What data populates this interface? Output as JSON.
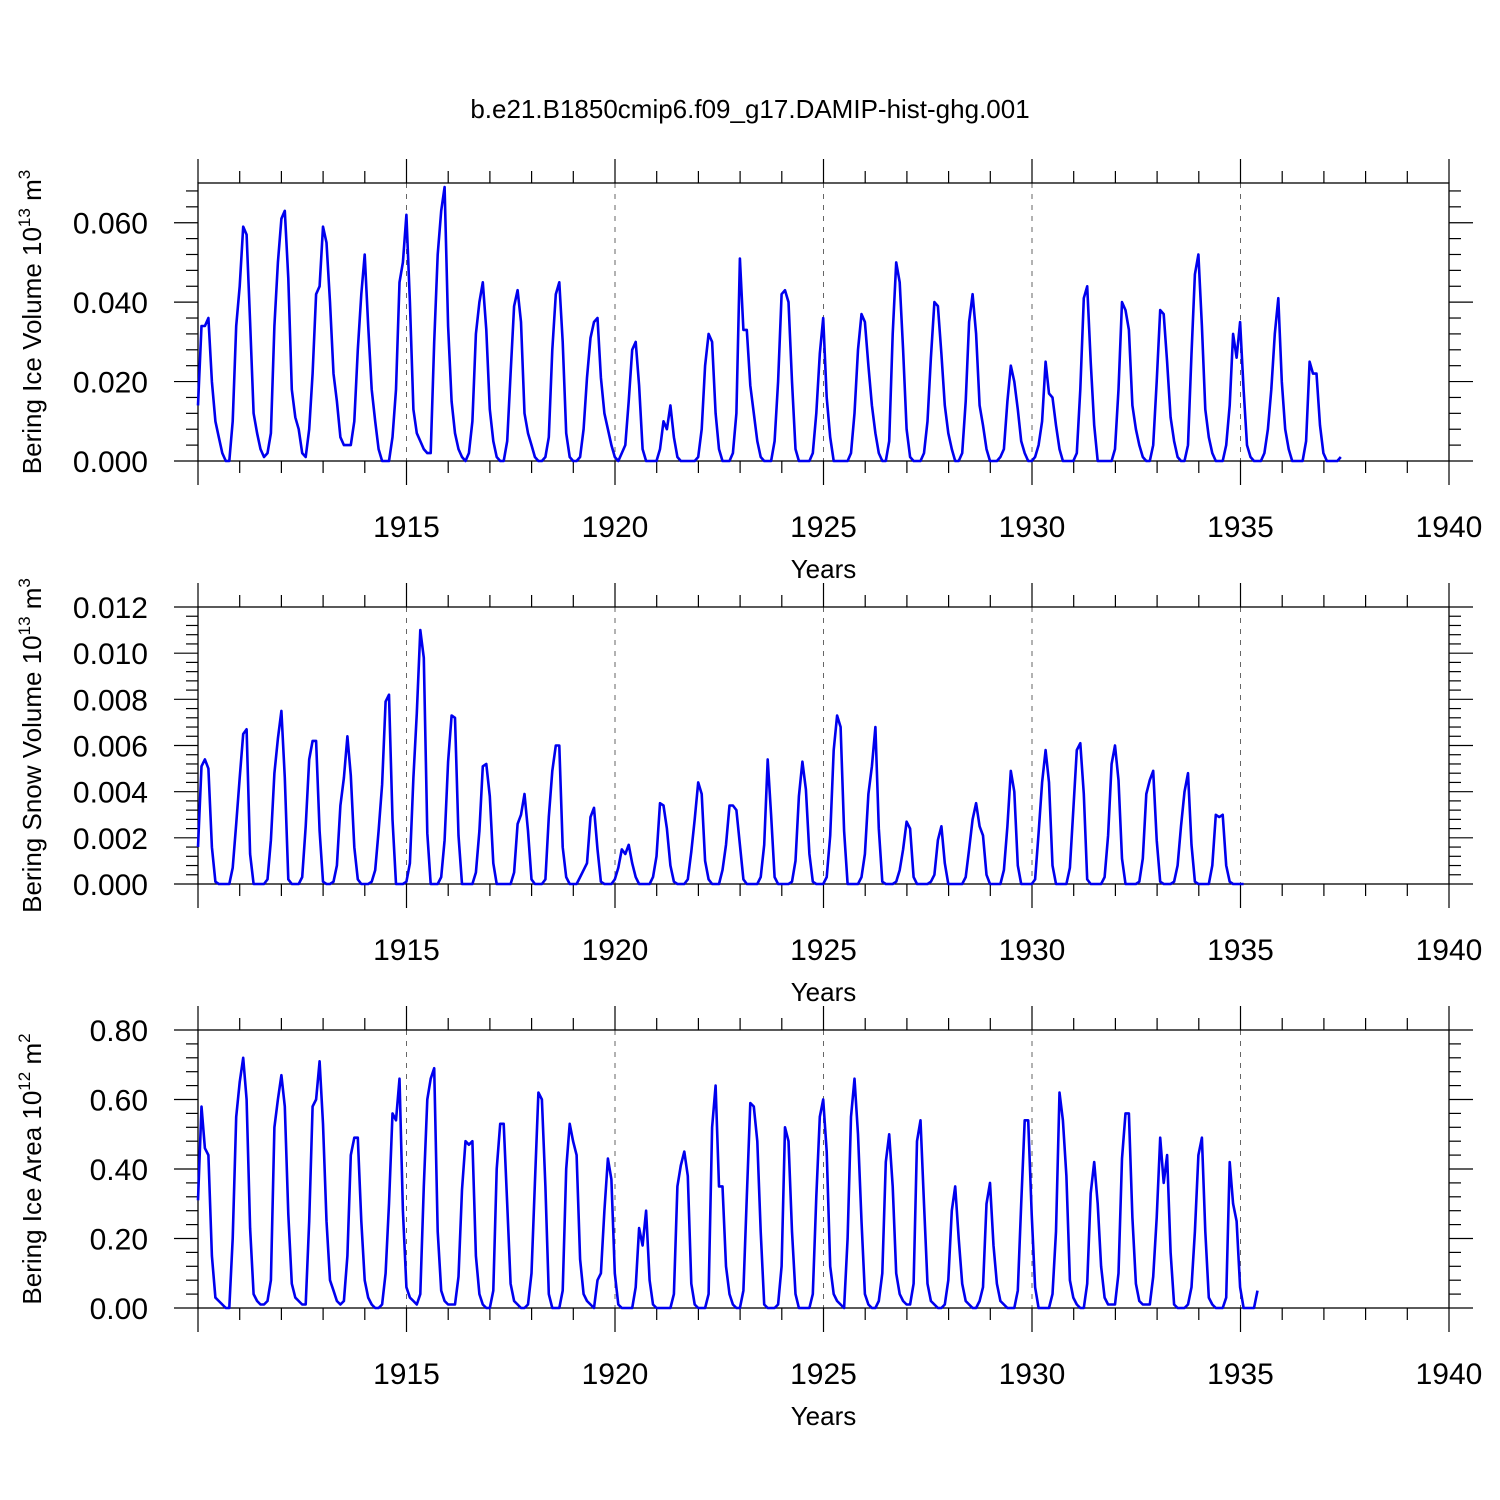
{
  "title": "b.e21.B1850cmip6.f09_g17.DAMIP-hist-ghg.001",
  "line_color": "#0000ee",
  "chart_data": [
    {
      "type": "line",
      "name": "ice-volume",
      "ylabel_main": "Bering Ice Volume 10",
      "ylabel_sup1": "13",
      "ylabel_mid": " m",
      "ylabel_sup2": "3",
      "xlabel": "Years",
      "xlim": [
        1910.0,
        1940.0
      ],
      "ylim": [
        0,
        0.07
      ],
      "yticks": [
        "0.000",
        "0.020",
        "0.040",
        "0.060"
      ],
      "xticks": [
        "1915",
        "1920",
        "1925",
        "1930",
        "1935",
        "1940"
      ],
      "grid_x": true,
      "series": [
        {
          "name": "Bering Ice Volume",
          "start": 1910.0,
          "step": 0.0833,
          "values": [
            0.014,
            0.034,
            0.034,
            0.036,
            0.02,
            0.01,
            0.006,
            0.002,
            0,
            0,
            0.01,
            0.034,
            0.044,
            0.059,
            0.057,
            0.035,
            0.012,
            0.007,
            0.003,
            0.001,
            0.002,
            0.007,
            0.034,
            0.05,
            0.061,
            0.063,
            0.046,
            0.018,
            0.011,
            0.008,
            0.002,
            0.001,
            0.008,
            0.022,
            0.042,
            0.044,
            0.059,
            0.055,
            0.04,
            0.022,
            0.015,
            0.006,
            0.004,
            0.004,
            0.004,
            0.01,
            0.028,
            0.042,
            0.052,
            0.034,
            0.018,
            0.01,
            0.003,
            0,
            0,
            0,
            0.006,
            0.018,
            0.045,
            0.05,
            0.062,
            0.04,
            0.013,
            0.007,
            0.005,
            0.003,
            0.002,
            0.002,
            0.03,
            0.052,
            0.063,
            0.069,
            0.034,
            0.015,
            0.007,
            0.003,
            0.001,
            0,
            0.002,
            0.01,
            0.032,
            0.04,
            0.045,
            0.033,
            0.013,
            0.005,
            0.001,
            0,
            0,
            0.005,
            0.022,
            0.039,
            0.043,
            0.035,
            0.012,
            0.007,
            0.004,
            0.001,
            0,
            0,
            0.001,
            0.006,
            0.028,
            0.042,
            0.045,
            0.03,
            0.007,
            0.001,
            0,
            0,
            0.001,
            0.008,
            0.021,
            0.031,
            0.035,
            0.036,
            0.021,
            0.012,
            0.008,
            0.004,
            0.001,
            0,
            0.002,
            0.004,
            0.015,
            0.028,
            0.03,
            0.019,
            0.003,
            0,
            0,
            0,
            0,
            0.003,
            0.01,
            0.008,
            0.014,
            0.006,
            0.001,
            0,
            0,
            0,
            0,
            0,
            0.001,
            0.008,
            0.024,
            0.032,
            0.03,
            0.012,
            0.003,
            0,
            0,
            0,
            0.002,
            0.012,
            0.051,
            0.033,
            0.033,
            0.019,
            0.012,
            0.005,
            0.001,
            0,
            0,
            0,
            0.005,
            0.02,
            0.042,
            0.043,
            0.04,
            0.02,
            0.003,
            0,
            0,
            0,
            0,
            0.002,
            0.012,
            0.027,
            0.036,
            0.016,
            0.006,
            0,
            0,
            0,
            0,
            0,
            0.002,
            0.012,
            0.028,
            0.037,
            0.035,
            0.024,
            0.014,
            0.007,
            0.002,
            0,
            0,
            0.005,
            0.032,
            0.05,
            0.045,
            0.028,
            0.008,
            0.001,
            0,
            0,
            0,
            0.002,
            0.01,
            0.026,
            0.04,
            0.039,
            0.027,
            0.014,
            0.007,
            0.003,
            0,
            0,
            0.002,
            0.015,
            0.035,
            0.042,
            0.032,
            0.014,
            0.009,
            0.003,
            0,
            0,
            0,
            0.001,
            0.003,
            0.015,
            0.024,
            0.02,
            0.013,
            0.005,
            0.002,
            0,
            0,
            0.001,
            0.004,
            0.01,
            0.025,
            0.017,
            0.016,
            0.009,
            0.003,
            0,
            0,
            0,
            0,
            0.002,
            0.018,
            0.041,
            0.044,
            0.025,
            0.009,
            0,
            0,
            0,
            0,
            0,
            0.003,
            0.018,
            0.04,
            0.038,
            0.033,
            0.014,
            0.008,
            0.004,
            0.001,
            0,
            0,
            0.004,
            0.02,
            0.038,
            0.037,
            0.025,
            0.011,
            0.005,
            0.001,
            0,
            0,
            0.004,
            0.027,
            0.047,
            0.052,
            0.034,
            0.013,
            0.006,
            0.002,
            0,
            0,
            0,
            0.004,
            0.014,
            0.032,
            0.026,
            0.035,
            0.018,
            0.004,
            0.001,
            0,
            0,
            0,
            0.002,
            0.008,
            0.018,
            0.032,
            0.041,
            0.02,
            0.008,
            0.003,
            0,
            0,
            0,
            0,
            0.005,
            0.025,
            0.022,
            0.022,
            0.009,
            0.002,
            0,
            0,
            0,
            0,
            0.001
          ]
        }
      ]
    },
    {
      "type": "line",
      "name": "snow-volume",
      "ylabel_main": "Bering Snow Volume 10",
      "ylabel_sup1": "13",
      "ylabel_mid": " m",
      "ylabel_sup2": "3",
      "xlabel": "Years",
      "xlim": [
        1910.0,
        1940.0
      ],
      "ylim": [
        0,
        0.012
      ],
      "yticks": [
        "0.000",
        "0.002",
        "0.004",
        "0.006",
        "0.008",
        "0.010",
        "0.012"
      ],
      "xticks": [
        "1915",
        "1920",
        "1925",
        "1930",
        "1935",
        "1940"
      ],
      "grid_x": true,
      "series": [
        {
          "name": "Bering Snow Volume",
          "start": 1910.0,
          "step": 0.0833,
          "values": [
            0.0016,
            0.0051,
            0.0054,
            0.005,
            0.0016,
            0.0001,
            0,
            0,
            0,
            0,
            0.0007,
            0.0026,
            0.0046,
            0.0065,
            0.0067,
            0.0013,
            0,
            0,
            0,
            0,
            0.0002,
            0.0019,
            0.0048,
            0.0063,
            0.0075,
            0.0046,
            0.0002,
            0,
            0,
            0,
            0.0003,
            0.0025,
            0.0054,
            0.0062,
            0.0062,
            0.0023,
            0.0001,
            0,
            0,
            0.0001,
            0.0008,
            0.0034,
            0.0046,
            0.0064,
            0.0047,
            0.0016,
            0.0002,
            0,
            0,
            0,
            0.0001,
            0.0006,
            0.0023,
            0.0043,
            0.0079,
            0.0082,
            0.0028,
            0,
            0,
            0,
            0.0001,
            0.0009,
            0.0046,
            0.0074,
            0.011,
            0.0098,
            0.0022,
            0,
            0,
            0,
            0.0003,
            0.0019,
            0.0053,
            0.0073,
            0.0072,
            0.0021,
            0,
            0,
            0,
            0,
            0.0005,
            0.0023,
            0.0051,
            0.0052,
            0.0038,
            0.0009,
            0,
            0,
            0,
            0,
            0,
            0.0005,
            0.0026,
            0.003,
            0.0039,
            0.0023,
            0.0002,
            0,
            0,
            0,
            0.0002,
            0.0029,
            0.0049,
            0.006,
            0.006,
            0.0016,
            0.0003,
            0,
            0,
            0,
            0.0003,
            0.0006,
            0.0009,
            0.0029,
            0.0033,
            0.0015,
            0.0001,
            0,
            0,
            0,
            0.0002,
            0.0007,
            0.0015,
            0.0013,
            0.0017,
            0.0009,
            0.0003,
            0,
            0,
            0,
            0,
            0.0003,
            0.0012,
            0.0035,
            0.0034,
            0.0024,
            0.0008,
            0.0001,
            0,
            0,
            0,
            0.0002,
            0.0014,
            0.0028,
            0.0044,
            0.0039,
            0.001,
            0.0002,
            0,
            0,
            0,
            0.0006,
            0.0017,
            0.0034,
            0.0034,
            0.0032,
            0.0017,
            0.0002,
            0,
            0,
            0,
            0,
            0.0003,
            0.0017,
            0.0054,
            0.003,
            0.0003,
            0,
            0,
            0,
            0,
            0.0001,
            0.001,
            0.0038,
            0.0053,
            0.0041,
            0.0013,
            0.0001,
            0,
            0,
            0,
            0.0003,
            0.0021,
            0.0058,
            0.0073,
            0.0068,
            0.0023,
            0,
            0,
            0,
            0,
            0.0003,
            0.0013,
            0.0039,
            0.0051,
            0.0068,
            0.0024,
            0.0001,
            0,
            0,
            0,
            0.0001,
            0.0006,
            0.0015,
            0.0027,
            0.0024,
            0.0003,
            0,
            0,
            0,
            0,
            0.0001,
            0.0004,
            0.0019,
            0.0025,
            0.0009,
            0,
            0,
            0,
            0,
            0,
            0.0003,
            0.0015,
            0.0028,
            0.0035,
            0.0025,
            0.0021,
            0.0004,
            0,
            0,
            0,
            0,
            0.0006,
            0.0025,
            0.0049,
            0.004,
            0.0008,
            0,
            0,
            0,
            0,
            0.0002,
            0.0022,
            0.0044,
            0.0058,
            0.0044,
            0.0008,
            0,
            0,
            0,
            0,
            0.0007,
            0.0032,
            0.0058,
            0.0061,
            0.0039,
            0.0002,
            0,
            0,
            0,
            0,
            0.0003,
            0.0021,
            0.0052,
            0.006,
            0.0045,
            0.0011,
            0,
            0,
            0,
            0,
            0.0001,
            0.0011,
            0.0039,
            0.0045,
            0.0049,
            0.0019,
            0.0001,
            0,
            0,
            0,
            0.0001,
            0.0008,
            0.0025,
            0.004,
            0.0048,
            0.0017,
            0.0001,
            0,
            0,
            0,
            0,
            0.0008,
            0.003,
            0.0029,
            0.003,
            0.0008,
            0.0001,
            0,
            0,
            0,
            0
          ]
        }
      ]
    },
    {
      "type": "line",
      "name": "ice-area",
      "ylabel_main": "Bering Ice Area 10",
      "ylabel_sup1": "12",
      "ylabel_mid": " m",
      "ylabel_sup2": "2",
      "xlabel": "Years",
      "xlim": [
        1910.0,
        1940.0
      ],
      "ylim": [
        0,
        0.8
      ],
      "yticks": [
        "0.00",
        "0.20",
        "0.40",
        "0.60",
        "0.80"
      ],
      "xticks": [
        "1915",
        "1920",
        "1925",
        "1930",
        "1935",
        "1940"
      ],
      "grid_x": true,
      "series": [
        {
          "name": "Bering Ice Area",
          "start": 1910.0,
          "step": 0.0833,
          "values": [
            0.31,
            0.58,
            0.46,
            0.44,
            0.15,
            0.03,
            0.02,
            0.01,
            0,
            0,
            0.2,
            0.55,
            0.65,
            0.72,
            0.6,
            0.23,
            0.04,
            0.02,
            0.01,
            0.01,
            0.02,
            0.08,
            0.52,
            0.6,
            0.67,
            0.58,
            0.27,
            0.07,
            0.03,
            0.02,
            0.01,
            0.01,
            0.25,
            0.58,
            0.6,
            0.71,
            0.53,
            0.25,
            0.08,
            0.05,
            0.02,
            0.01,
            0.02,
            0.15,
            0.44,
            0.49,
            0.49,
            0.25,
            0.08,
            0.03,
            0.01,
            0,
            0,
            0.01,
            0.1,
            0.3,
            0.56,
            0.54,
            0.66,
            0.28,
            0.06,
            0.03,
            0.02,
            0.01,
            0.04,
            0.35,
            0.6,
            0.66,
            0.69,
            0.22,
            0.05,
            0.02,
            0.01,
            0.01,
            0.01,
            0.09,
            0.34,
            0.48,
            0.47,
            0.48,
            0.15,
            0.04,
            0.01,
            0,
            0,
            0.05,
            0.4,
            0.53,
            0.53,
            0.3,
            0.07,
            0.02,
            0.01,
            0,
            0,
            0.01,
            0.1,
            0.36,
            0.62,
            0.6,
            0.35,
            0.04,
            0,
            0,
            0,
            0.05,
            0.4,
            0.53,
            0.48,
            0.44,
            0.14,
            0.04,
            0.02,
            0.01,
            0,
            0.08,
            0.1,
            0.28,
            0.43,
            0.37,
            0.1,
            0.01,
            0,
            0,
            0,
            0,
            0.06,
            0.23,
            0.18,
            0.28,
            0.08,
            0.01,
            0,
            0,
            0,
            0,
            0,
            0.04,
            0.35,
            0.41,
            0.45,
            0.38,
            0.07,
            0.01,
            0,
            0,
            0,
            0.04,
            0.52,
            0.64,
            0.35,
            0.35,
            0.12,
            0.04,
            0.01,
            0,
            0,
            0.05,
            0.32,
            0.59,
            0.58,
            0.48,
            0.22,
            0.01,
            0,
            0,
            0,
            0.01,
            0.12,
            0.52,
            0.48,
            0.22,
            0.04,
            0,
            0,
            0,
            0,
            0.04,
            0.32,
            0.55,
            0.6,
            0.45,
            0.12,
            0.04,
            0.02,
            0.01,
            0,
            0.2,
            0.55,
            0.66,
            0.5,
            0.25,
            0.04,
            0.01,
            0,
            0,
            0.02,
            0.1,
            0.42,
            0.5,
            0.35,
            0.1,
            0.04,
            0.02,
            0.01,
            0.01,
            0.07,
            0.48,
            0.54,
            0.3,
            0.07,
            0.02,
            0.01,
            0,
            0,
            0.01,
            0.08,
            0.28,
            0.35,
            0.2,
            0.07,
            0.02,
            0.01,
            0,
            0,
            0.02,
            0.06,
            0.3,
            0.36,
            0.18,
            0.07,
            0.02,
            0.01,
            0,
            0,
            0,
            0.05,
            0.3,
            0.54,
            0.54,
            0.27,
            0.06,
            0,
            0,
            0,
            0,
            0.04,
            0.22,
            0.62,
            0.54,
            0.38,
            0.08,
            0.03,
            0.01,
            0,
            0,
            0.07,
            0.33,
            0.42,
            0.3,
            0.12,
            0.03,
            0.01,
            0.01,
            0.01,
            0.1,
            0.43,
            0.56,
            0.56,
            0.26,
            0.07,
            0.02,
            0.01,
            0.01,
            0.01,
            0.09,
            0.26,
            0.49,
            0.36,
            0.44,
            0.16,
            0.01,
            0,
            0,
            0,
            0.01,
            0.06,
            0.22,
            0.44,
            0.49,
            0.22,
            0.03,
            0.01,
            0,
            0,
            0,
            0.03,
            0.42,
            0.3,
            0.25,
            0.06,
            0,
            0,
            0,
            0,
            0.05
          ]
        }
      ]
    }
  ]
}
